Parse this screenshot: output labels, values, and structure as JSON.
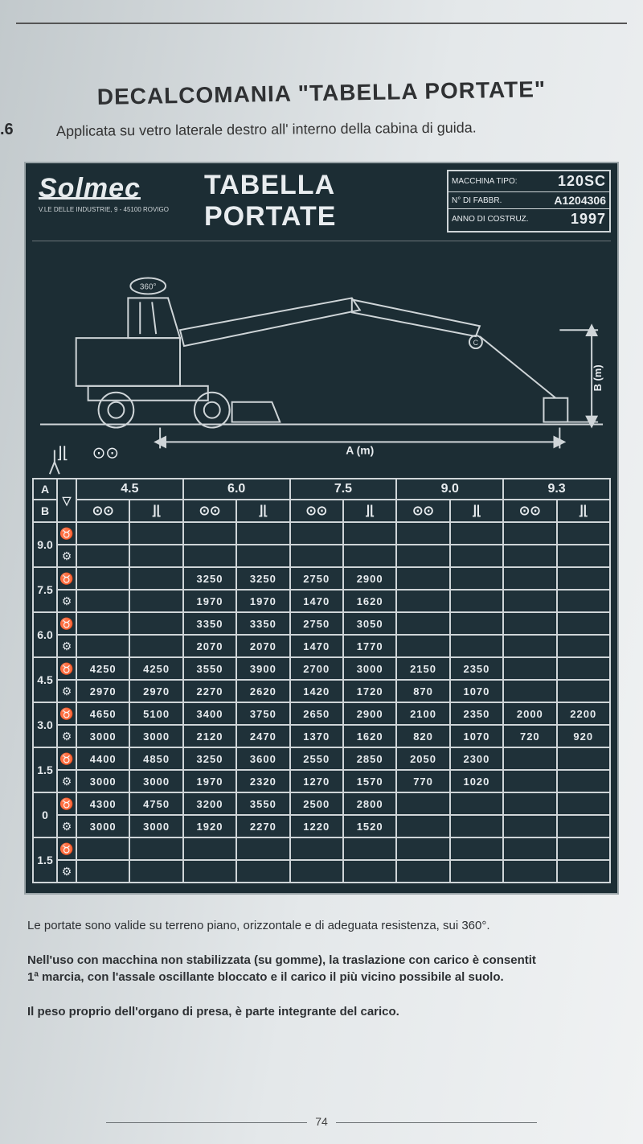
{
  "doc": {
    "section_number": ".6",
    "title": "DECALCOMANIA \"TABELLA PORTATE\"",
    "subtitle": "Applicata su vetro laterale destro all' interno della cabina di guida.",
    "page_number": "74"
  },
  "plate": {
    "brand": "Solmec",
    "brand_address": "V.LE DELLE INDUSTRIE, 9 - 45100 ROVIGO",
    "title": "TABELLA PORTATE",
    "machine": {
      "tipo_label": "MACCHINA TIPO:",
      "tipo": "120SC",
      "fabbr_label": "N° DI FABBR.",
      "fabbr": "A1204306",
      "anno_label": "ANNO DI COSTRUZ.",
      "anno": "1997"
    },
    "diagram": {
      "a_label": "A (m)",
      "b_label": "B (m)",
      "rot_label": "360°"
    },
    "table": {
      "a_header": "A",
      "b_header": "B",
      "a_values": [
        "4.5",
        "6.0",
        "7.5",
        "9.0",
        "9.3"
      ],
      "sym_wheel": "⊙⊙",
      "sym_stab": "⌋⌊",
      "b_rows": [
        {
          "b": "9.0",
          "r1": [
            "",
            "",
            "",
            "",
            "",
            "",
            "",
            "",
            "",
            ""
          ],
          "r2": [
            "",
            "",
            "",
            "",
            "",
            "",
            "",
            "",
            "",
            ""
          ]
        },
        {
          "b": "7.5",
          "r1": [
            "",
            "",
            "3250",
            "3250",
            "2750",
            "2900",
            "",
            "",
            "",
            ""
          ],
          "r2": [
            "",
            "",
            "1970",
            "1970",
            "1470",
            "1620",
            "",
            "",
            "",
            ""
          ]
        },
        {
          "b": "6.0",
          "r1": [
            "",
            "",
            "3350",
            "3350",
            "2750",
            "3050",
            "",
            "",
            "",
            ""
          ],
          "r2": [
            "",
            "",
            "2070",
            "2070",
            "1470",
            "1770",
            "",
            "",
            "",
            ""
          ]
        },
        {
          "b": "4.5",
          "r1": [
            "4250",
            "4250",
            "3550",
            "3900",
            "2700",
            "3000",
            "2150",
            "2350",
            "",
            ""
          ],
          "r2": [
            "2970",
            "2970",
            "2270",
            "2620",
            "1420",
            "1720",
            "870",
            "1070",
            "",
            ""
          ]
        },
        {
          "b": "3.0",
          "r1": [
            "4650",
            "5100",
            "3400",
            "3750",
            "2650",
            "2900",
            "2100",
            "2350",
            "2000",
            "2200"
          ],
          "r2": [
            "3000",
            "3000",
            "2120",
            "2470",
            "1370",
            "1620",
            "820",
            "1070",
            "720",
            "920"
          ]
        },
        {
          "b": "1.5",
          "r1": [
            "4400",
            "4850",
            "3250",
            "3600",
            "2550",
            "2850",
            "2050",
            "2300",
            "",
            ""
          ],
          "r2": [
            "3000",
            "3000",
            "1970",
            "2320",
            "1270",
            "1570",
            "770",
            "1020",
            "",
            ""
          ]
        },
        {
          "b": "0",
          "r1": [
            "4300",
            "4750",
            "3200",
            "3550",
            "2500",
            "2800",
            "",
            "",
            "",
            ""
          ],
          "r2": [
            "3000",
            "3000",
            "1920",
            "2270",
            "1220",
            "1520",
            "",
            "",
            "",
            ""
          ]
        },
        {
          "b": "1.5",
          "r1": [
            "",
            "",
            "",
            "",
            "",
            "",
            "",
            "",
            "",
            ""
          ],
          "r2": [
            "",
            "",
            "",
            "",
            "",
            "",
            "",
            "",
            "",
            ""
          ]
        }
      ],
      "colors": {
        "plate_bg": "#1c2d34",
        "line": "#cfd5d8",
        "text": "#e8ecef"
      }
    }
  },
  "notes": {
    "p1": "Le portate sono valide su terreno piano, orizzontale e di adeguata resistenza, sui 360°.",
    "p2a": "Nell'uso con macchina non stabilizzata (su gomme), la traslazione con carico è consentit",
    "p2b": "1ª marcia, con l'assale oscillante bloccato e il carico il più vicino possibile al suolo.",
    "p3": "Il peso proprio dell'organo di presa, è parte integrante del carico."
  }
}
